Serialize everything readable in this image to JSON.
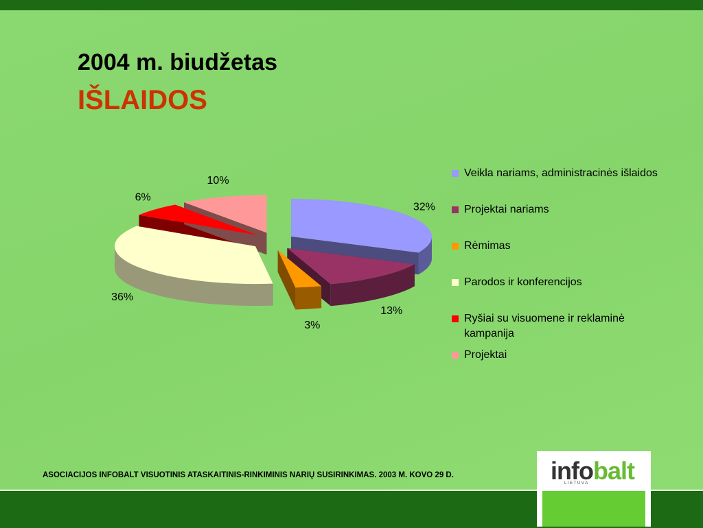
{
  "chart_data": {
    "type": "pie",
    "title": "2004 m. biudžetas",
    "subtitle": "IŠLAIDOS",
    "categories": [
      "Veikla nariams, administracinės išlaidos",
      "Projektai nariams",
      "Rėmimas",
      "Parodos ir konferencijos",
      "Ryšiai su visuomene ir reklaminė kampanija",
      "Projektai"
    ],
    "values": [
      32,
      13,
      3,
      36,
      6,
      10
    ],
    "value_labels": [
      "32%",
      "13%",
      "3%",
      "36%",
      "6%",
      "10%"
    ],
    "colors": [
      "#9999ff",
      "#993366",
      "#ff9900",
      "#ffffcc",
      "#ff0000",
      "#ff9999"
    ],
    "legend": "right"
  },
  "footer": "ASOCIACIJOS INFOBALT VISUOTINIS ATASKAITINIS-RINKIMINIS NARIŲ SUSIRINKIMAS. 2003 M. KOVO 29 D.",
  "logo": {
    "name_dark": "info",
    "name_green": "balt",
    "tagline": "L I E T U V A"
  }
}
